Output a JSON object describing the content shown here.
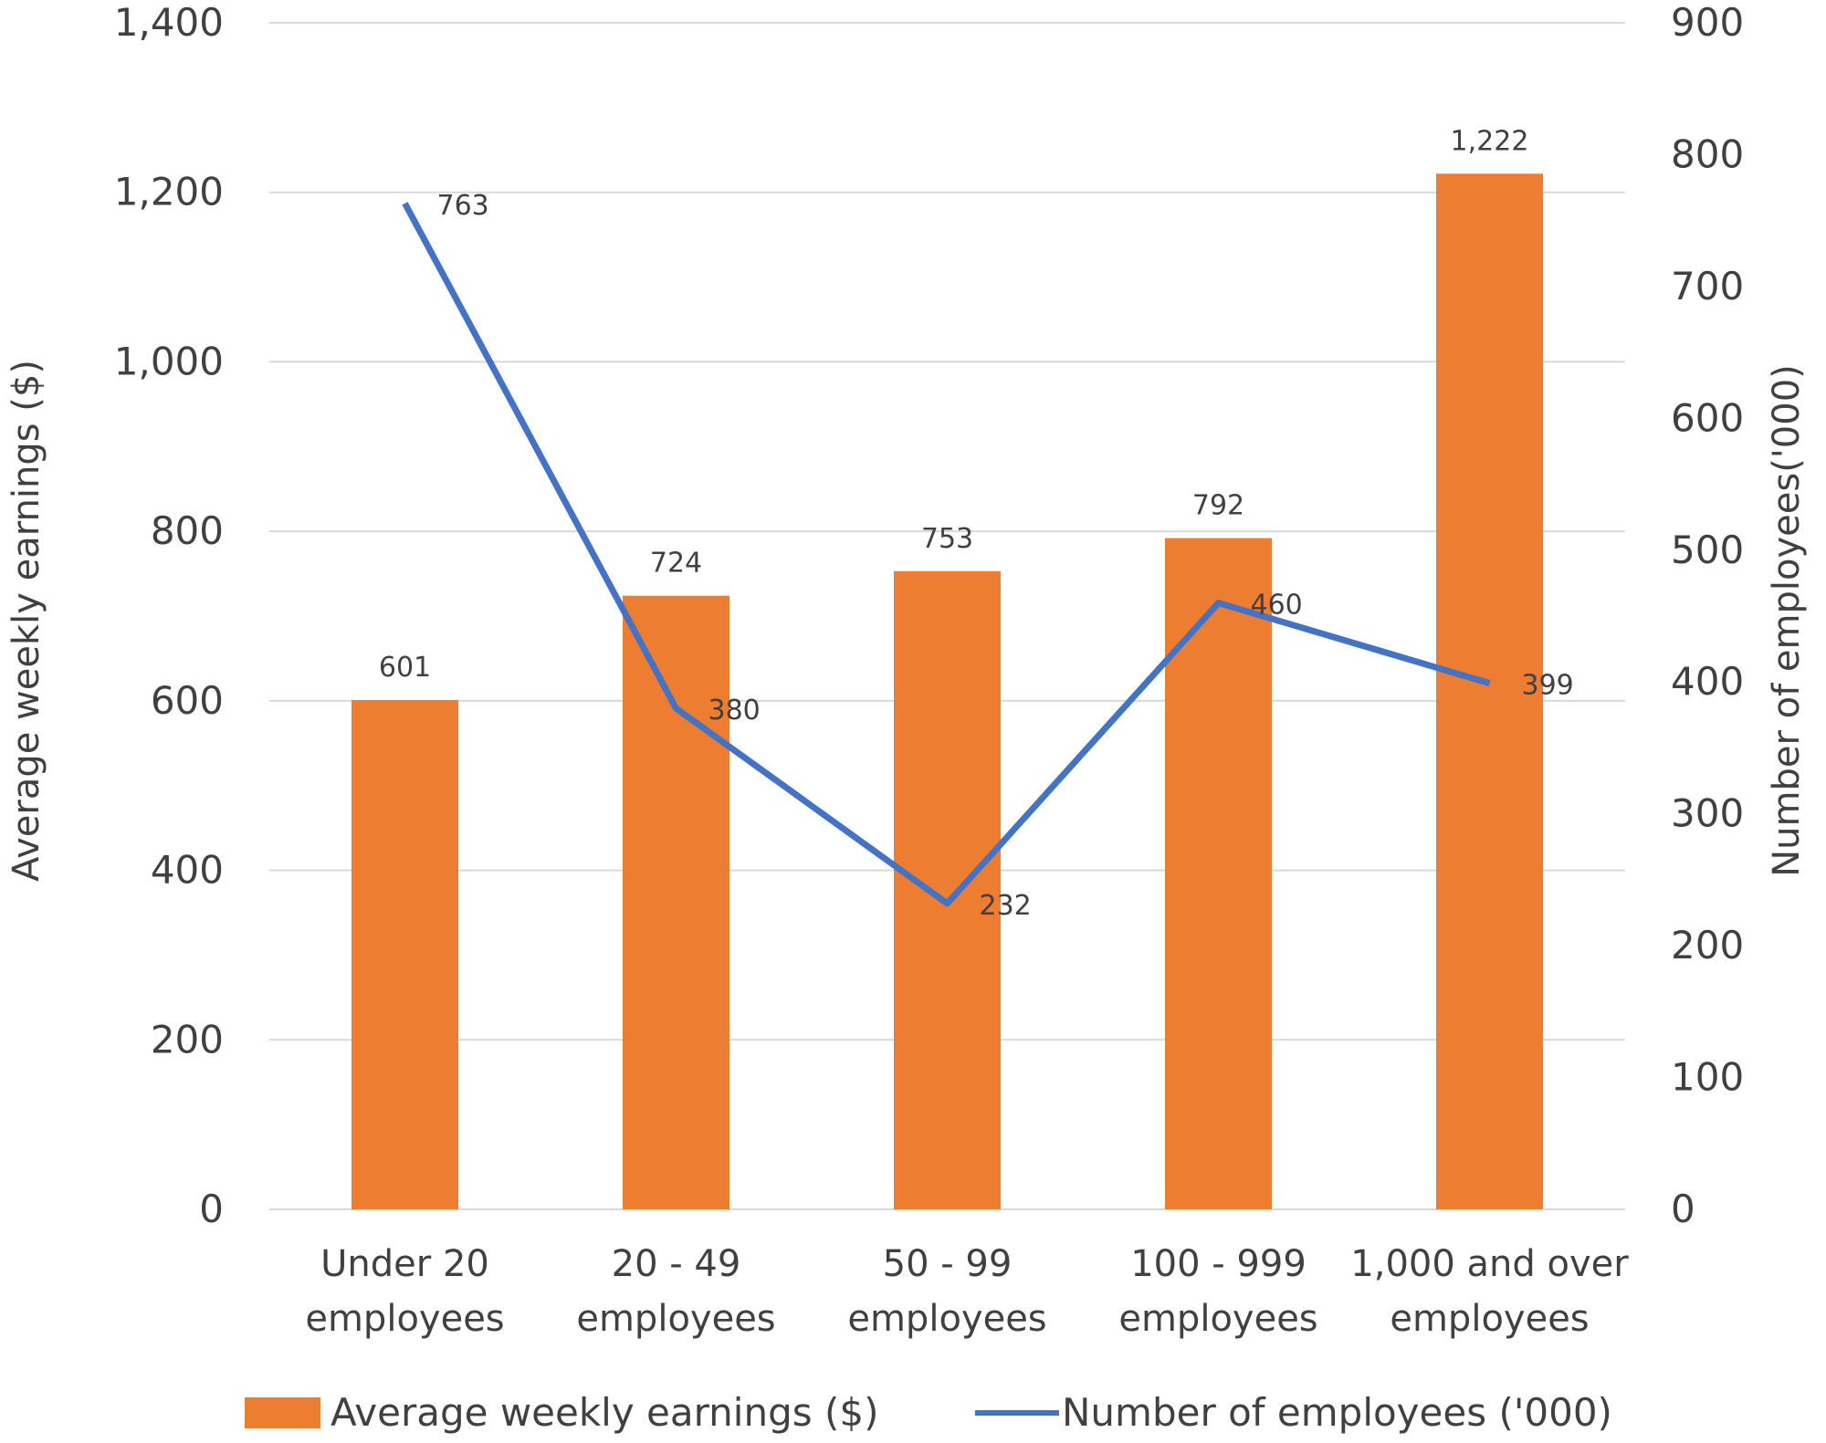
{
  "chart_data": {
    "type": "bar",
    "categories": [
      [
        "Under 20",
        "employees"
      ],
      [
        "20 - 49",
        "employees"
      ],
      [
        "50 - 99",
        "employees"
      ],
      [
        "100 - 999",
        "employees"
      ],
      [
        "1,000 and over",
        "employees"
      ]
    ],
    "series": [
      {
        "name": "Average weekly earnings ($)",
        "type": "bar",
        "axis": "left",
        "color": "#ED7D31",
        "values": [
          601,
          724,
          753,
          792,
          1222
        ],
        "labels": [
          "601",
          "724",
          "753",
          "792",
          "1,222"
        ]
      },
      {
        "name": "Number of employees ('000)",
        "type": "line",
        "axis": "right",
        "color": "#4472C4",
        "values": [
          763,
          380,
          232,
          460,
          399
        ],
        "labels": [
          "763",
          "380",
          "232",
          "460",
          "399"
        ]
      }
    ],
    "y_left": {
      "label": "Average weekly earnings ($)",
      "ylim": [
        0,
        1400
      ],
      "ticks": [
        "0",
        "200",
        "400",
        "600",
        "800",
        "1,000",
        "1,200",
        "1,400"
      ]
    },
    "y_right": {
      "label": "Number  of employees('000)",
      "ylim": [
        0,
        900
      ],
      "ticks": [
        "0",
        "100",
        "200",
        "300",
        "400",
        "500",
        "600",
        "700",
        "800",
        "900"
      ]
    },
    "grid": true,
    "legend_position": "bottom"
  }
}
